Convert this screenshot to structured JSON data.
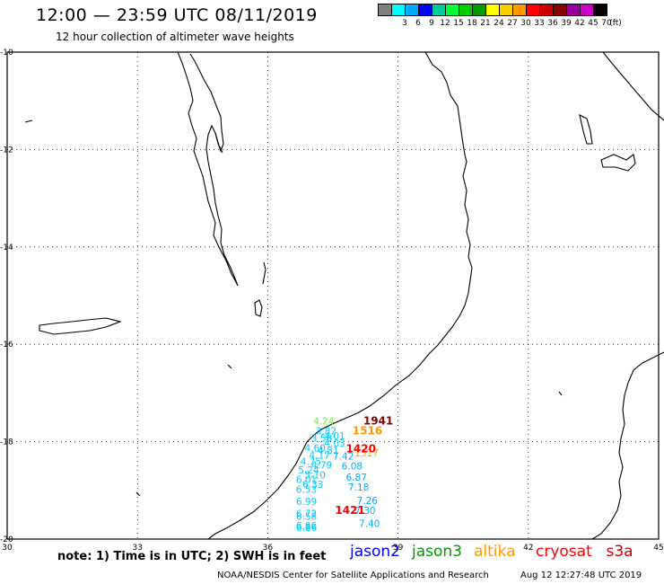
{
  "header": {
    "title": "12:00 — 23:59 UTC 08/11/2019",
    "subtitle": "12 hour collection of altimeter wave heights"
  },
  "legend": {
    "unit": "(ft)",
    "items": [
      {
        "label": "",
        "color": "#808080"
      },
      {
        "label": "3",
        "color": "#00ffff"
      },
      {
        "label": "6",
        "color": "#00aaff"
      },
      {
        "label": "9",
        "color": "#0000ff"
      },
      {
        "label": "12",
        "color": "#00cc99"
      },
      {
        "label": "15",
        "color": "#00ff33"
      },
      {
        "label": "18",
        "color": "#00cc00"
      },
      {
        "label": "21",
        "color": "#009900"
      },
      {
        "label": "24",
        "color": "#ffff00"
      },
      {
        "label": "27",
        "color": "#ffcc00"
      },
      {
        "label": "30",
        "color": "#ff9900"
      },
      {
        "label": "33",
        "color": "#ff0000"
      },
      {
        "label": "36",
        "color": "#cc0000"
      },
      {
        "label": "39",
        "color": "#880000"
      },
      {
        "label": "42",
        "color": "#990099"
      },
      {
        "label": "45",
        "color": "#cc00cc"
      },
      {
        "label": "70",
        "color": "#000000"
      }
    ]
  },
  "map": {
    "lon_ticks": [
      "30",
      "33",
      "36",
      "39",
      "42",
      "45"
    ],
    "lat_ticks": [
      "-10",
      "-12",
      "-14",
      "-16",
      "-18",
      "-20"
    ],
    "lon_range": [
      30,
      45
    ],
    "lat_range": [
      -20,
      -10
    ]
  },
  "time_labels": [
    {
      "text": "1941",
      "lon": 38.2,
      "lat": -17.65,
      "color": "#880000"
    },
    {
      "text": "1516",
      "lon": 37.95,
      "lat": -17.85,
      "color": "#ff9900"
    },
    {
      "text": "1420",
      "lon": 37.8,
      "lat": -18.22,
      "color": "#ff0000"
    },
    {
      "text": "1421",
      "lon": 37.55,
      "lat": -19.48,
      "color": "#ff0000"
    }
  ],
  "wave_readings": [
    {
      "text": "4.24",
      "lon": 37.05,
      "lat": -17.65,
      "color": "#66ff33"
    },
    {
      "text": "3.82",
      "lon": 37.1,
      "lat": -17.85,
      "color": "#00ccff"
    },
    {
      "text": "4.01",
      "lon": 37.3,
      "lat": -17.95,
      "color": "#00ccff"
    },
    {
      "text": "3.58",
      "lon": 37.0,
      "lat": -18.0,
      "color": "#00ccff"
    },
    {
      "text": "4.03",
      "lon": 37.3,
      "lat": -18.1,
      "color": "#00ccff"
    },
    {
      "text": "4.60",
      "lon": 36.85,
      "lat": -18.2,
      "color": "#00ccff"
    },
    {
      "text": "4.81",
      "lon": 37.15,
      "lat": -18.25,
      "color": "#00ccff"
    },
    {
      "text": "4.17",
      "lon": 36.95,
      "lat": -18.35,
      "color": "#00ccff"
    },
    {
      "text": "7.42",
      "lon": 37.5,
      "lat": -18.37,
      "color": "#00aaff"
    },
    {
      "text": "1517",
      "lon": 38.0,
      "lat": -18.3,
      "color": "#ff9900"
    },
    {
      "text": "4.75",
      "lon": 36.75,
      "lat": -18.48,
      "color": "#00ccff"
    },
    {
      "text": "4.79",
      "lon": 37.0,
      "lat": -18.55,
      "color": "#00ccff"
    },
    {
      "text": "6.08",
      "lon": 37.7,
      "lat": -18.57,
      "color": "#00aaff"
    },
    {
      "text": "5.24",
      "lon": 36.7,
      "lat": -18.65,
      "color": "#00ccff"
    },
    {
      "text": "5.10",
      "lon": 36.85,
      "lat": -18.75,
      "color": "#00ccff"
    },
    {
      "text": "6.87",
      "lon": 37.8,
      "lat": -18.8,
      "color": "#00aaff"
    },
    {
      "text": "6.01",
      "lon": 36.65,
      "lat": -18.85,
      "color": "#00ccff"
    },
    {
      "text": "6.33",
      "lon": 36.8,
      "lat": -18.95,
      "color": "#00ccff"
    },
    {
      "text": "7.18",
      "lon": 37.85,
      "lat": -19.0,
      "color": "#00aaff"
    },
    {
      "text": "6.53",
      "lon": 36.65,
      "lat": -19.05,
      "color": "#00ccff"
    },
    {
      "text": "6.99",
      "lon": 36.65,
      "lat": -19.3,
      "color": "#00ccff"
    },
    {
      "text": "7.26",
      "lon": 38.05,
      "lat": -19.28,
      "color": "#00aaff"
    },
    {
      "text": "7.30",
      "lon": 38.0,
      "lat": -19.48,
      "color": "#00aaff"
    },
    {
      "text": "6.72",
      "lon": 36.65,
      "lat": -19.55,
      "color": "#00ccff"
    },
    {
      "text": "6.58",
      "lon": 36.65,
      "lat": -19.6,
      "color": "#00ccff"
    },
    {
      "text": "6.86",
      "lon": 36.65,
      "lat": -19.8,
      "color": "#00ccff"
    },
    {
      "text": "7.40",
      "lon": 38.1,
      "lat": -19.75,
      "color": "#00aaff"
    },
    {
      "text": "6.86",
      "lon": 36.65,
      "lat": -19.83,
      "color": "#00ccff"
    }
  ],
  "footer": {
    "note": "note:  1)  Time is in UTC;  2)  SWH is in feet",
    "satellites": [
      {
        "name": "jason2",
        "color": "#0000ff"
      },
      {
        "name": "jason3",
        "color": "#009900"
      },
      {
        "name": "altika",
        "color": "#ff9900"
      },
      {
        "name": "cryosat",
        "color": "#ff0000"
      },
      {
        "name": "s3a",
        "color": "#cc0000"
      }
    ],
    "credit": "NOAA/NESDIS Center for Satellite Applications and Research",
    "generated": "Aug 12 12:27:48 UTC 2019"
  }
}
